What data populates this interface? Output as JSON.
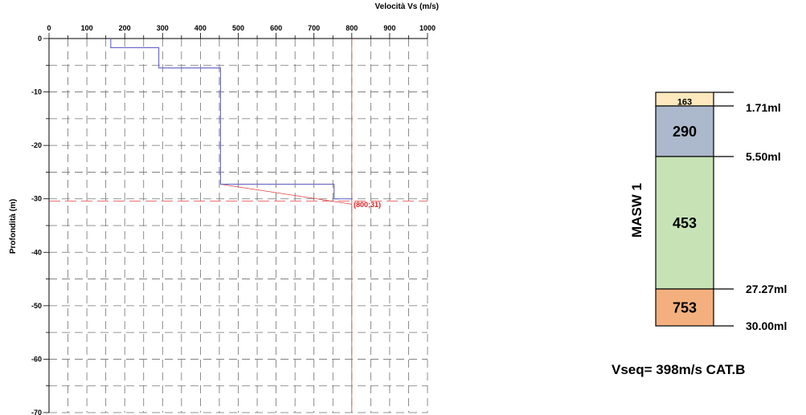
{
  "chart_data": {
    "type": "line",
    "xlabel": "Velocità Vs (m/s)",
    "ylabel": "Profondità (m)",
    "xlim": [
      0,
      1000
    ],
    "ylim": [
      -70,
      0
    ],
    "x_ticks": [
      0,
      100,
      200,
      300,
      400,
      500,
      600,
      700,
      800,
      900,
      1000
    ],
    "y_ticks": [
      0,
      -10,
      -20,
      -30,
      -40,
      -50,
      -60,
      -70
    ],
    "grid": true,
    "series": [
      {
        "color": "#6f6fc8",
        "points": [
          [
            163,
            0
          ],
          [
            163,
            -1.71
          ],
          [
            290,
            -1.71
          ],
          [
            290,
            -5.5
          ],
          [
            453,
            -5.5
          ],
          [
            453,
            -27.27
          ],
          [
            753,
            -27.27
          ],
          [
            753,
            -30
          ],
          [
            800,
            -30
          ]
        ]
      }
    ],
    "reference_line": {
      "x": 800,
      "color": "#e04040"
    },
    "depth_line": {
      "y": -30.4,
      "color": "#e04040"
    },
    "trend_line": {
      "color": "#e04040",
      "points": [
        [
          453,
          -27.27
        ],
        [
          800,
          -31
        ]
      ]
    },
    "annotation": {
      "text": "(800;31)",
      "x": 800,
      "y": -31,
      "color": "#e02020"
    }
  },
  "column": {
    "title": "MASW 1",
    "layers": [
      {
        "vs": "163",
        "depth_label": "1.71ml",
        "depth": 1.71,
        "color": "#fde9bd"
      },
      {
        "vs": "290",
        "depth_label": "5.50ml",
        "depth": 5.5,
        "color": "#acb8cc"
      },
      {
        "vs": "453",
        "depth_label": "27.27ml",
        "depth": 27.27,
        "color": "#c7e2b5"
      },
      {
        "vs": "753",
        "depth_label": "30.00ml",
        "depth": 30.0,
        "color": "#f3b07e"
      }
    ]
  },
  "vseq_label": "Vseq= 398m/s CAT.B"
}
